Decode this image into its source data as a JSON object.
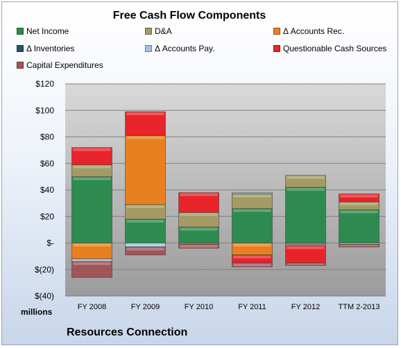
{
  "chart_data": {
    "type": "bar",
    "stacked": true,
    "title": "Free Cash Flow Components",
    "units_label": "millions",
    "company": "Resources Connection",
    "categories": [
      "FY 2008",
      "FY 2009",
      "FY 2010",
      "FY 2011",
      "FY 2012",
      "TTM 2-2013"
    ],
    "y_ticks": [
      "$120",
      "$100",
      "$80",
      "$60",
      "$40",
      "$20",
      "$-",
      "$(20)",
      "$(40)"
    ],
    "ylim": [
      -40,
      120
    ],
    "grid": true,
    "legend_position": "top",
    "series": [
      {
        "name": "Net Income",
        "color": "#2e8b4f",
        "values": [
          50,
          18,
          12,
          26,
          42,
          25
        ]
      },
      {
        "name": "D&A",
        "color": "#a39b63",
        "values": [
          9,
          11,
          11,
          11,
          9,
          6
        ]
      },
      {
        "name": "Δ Accounts Rec.",
        "color": "#e8801f",
        "values": [
          -12,
          52,
          -1,
          -9,
          -1,
          0
        ]
      },
      {
        "name": "Δ Inventories",
        "color": "#2f4f6f",
        "values": [
          0,
          0,
          0,
          0,
          0,
          0
        ]
      },
      {
        "name": "Δ Accounts Pay.",
        "color": "#9fc1e3",
        "values": [
          -2,
          -3,
          0,
          1,
          -1,
          -1
        ]
      },
      {
        "name": "Questionable Cash Sources",
        "color": "#e8242a",
        "values": [
          13,
          18,
          15,
          -6,
          -13,
          6
        ]
      },
      {
        "name": "Capital Expenditures",
        "color": "#a0555a",
        "values": [
          -12,
          -6,
          -3,
          -3,
          -2,
          -2
        ]
      }
    ]
  }
}
